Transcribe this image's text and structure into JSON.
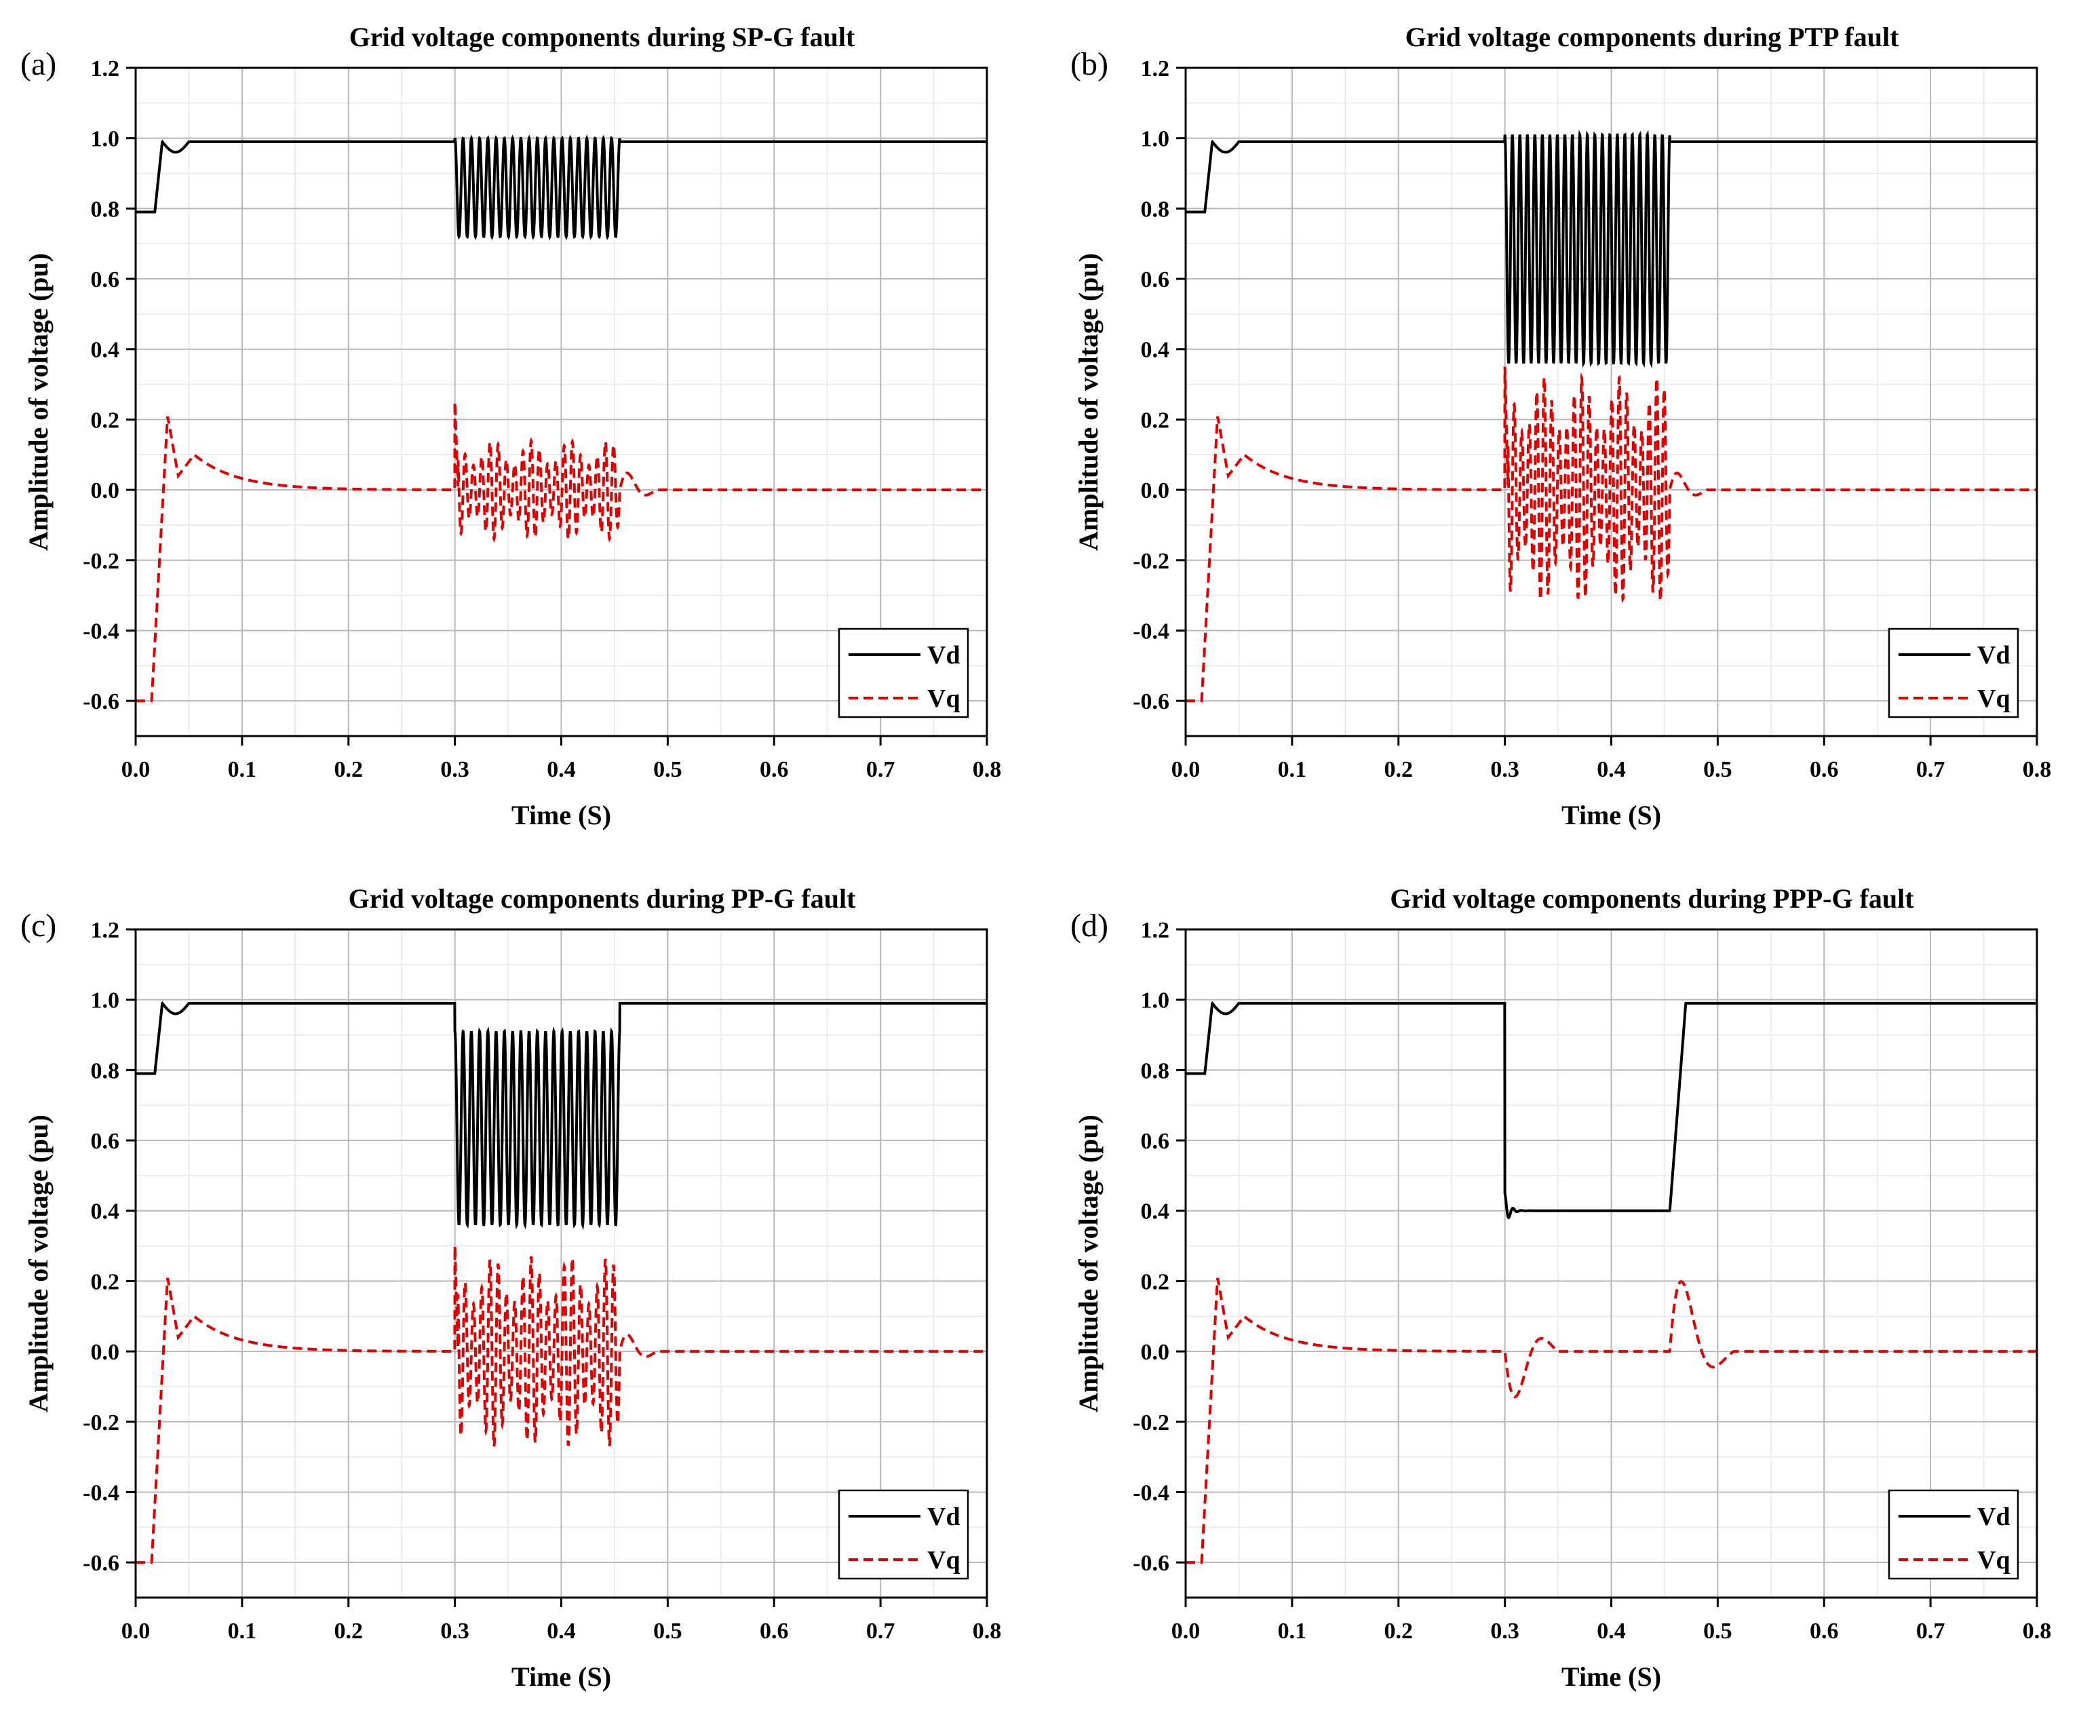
{
  "chart_data": [
    {
      "type": "line",
      "panel_label": "(a)",
      "title": "Grid voltage components during SP-G fault",
      "xlabel": "Time (S)",
      "ylabel": "Amplitude of voltage (pu)",
      "xlim": [
        0.0,
        0.8
      ],
      "ylim": [
        -0.7,
        1.2
      ],
      "xticks": [
        "0.0",
        "0.1",
        "0.2",
        "0.3",
        "0.4",
        "0.5",
        "0.6",
        "0.7",
        "0.8"
      ],
      "yticks": [
        "-0.6",
        "-0.4",
        "-0.2",
        "0.0",
        "0.2",
        "0.4",
        "0.6",
        "0.8",
        "1.0",
        "1.2"
      ],
      "legend": [
        "Vd",
        "Vq"
      ],
      "grid": true,
      "fault": {
        "start": 0.3,
        "end": 0.455,
        "vd_max": 1.0,
        "vd_min": 0.72,
        "vq_max": 0.14,
        "vq_min": -0.14,
        "vq_spike": 0.25,
        "cycles": 20
      },
      "series": [
        {
          "name": "Vd",
          "color": "#000000",
          "style": "solid"
        },
        {
          "name": "Vq",
          "color": "#e00000",
          "style": "dashed"
        }
      ]
    },
    {
      "type": "line",
      "panel_label": "(b)",
      "title": "Grid voltage components during PTP fault",
      "xlabel": "Time (S)",
      "ylabel": "Amplitude of voltage (pu)",
      "xlim": [
        0.0,
        0.8
      ],
      "ylim": [
        -0.7,
        1.2
      ],
      "xticks": [
        "0.0",
        "0.1",
        "0.2",
        "0.3",
        "0.4",
        "0.5",
        "0.6",
        "0.7",
        "0.8"
      ],
      "yticks": [
        "-0.6",
        "-0.4",
        "-0.2",
        "0.0",
        "0.2",
        "0.4",
        "0.6",
        "0.8",
        "1.0",
        "1.2"
      ],
      "legend": [
        "Vd",
        "Vq"
      ],
      "grid": true,
      "fault": {
        "start": 0.3,
        "end": 0.455,
        "vd_max": 1.01,
        "vd_min": 0.36,
        "vq_max": 0.32,
        "vq_min": -0.32,
        "vq_spike": 0.35,
        "cycles": 22
      },
      "series": [
        {
          "name": "Vd",
          "color": "#000000",
          "style": "solid"
        },
        {
          "name": "Vq",
          "color": "#e00000",
          "style": "dashed"
        }
      ]
    },
    {
      "type": "line",
      "panel_label": "(c)",
      "title": "Grid voltage components during PP-G fault",
      "xlabel": "Time (S)",
      "ylabel": "Amplitude of voltage (pu)",
      "xlim": [
        0.0,
        0.8
      ],
      "ylim": [
        -0.7,
        1.2
      ],
      "xticks": [
        "0.0",
        "0.1",
        "0.2",
        "0.3",
        "0.4",
        "0.5",
        "0.6",
        "0.7",
        "0.8"
      ],
      "yticks": [
        "-0.6",
        "-0.4",
        "-0.2",
        "0.0",
        "0.2",
        "0.4",
        "0.6",
        "0.8",
        "1.0",
        "1.2"
      ],
      "legend": [
        "Vd",
        "Vq"
      ],
      "grid": true,
      "fault": {
        "start": 0.3,
        "end": 0.455,
        "vd_max": 0.91,
        "vd_min": 0.36,
        "vq_max": 0.27,
        "vq_min": -0.26,
        "vq_spike": 0.3,
        "cycles": 20
      },
      "series": [
        {
          "name": "Vd",
          "color": "#000000",
          "style": "solid"
        },
        {
          "name": "Vq",
          "color": "#e00000",
          "style": "dashed"
        }
      ]
    },
    {
      "type": "line",
      "panel_label": "(d)",
      "title": "Grid voltage components during PPP-G fault",
      "xlabel": "Time (S)",
      "ylabel": "Amplitude of voltage (pu)",
      "xlim": [
        0.0,
        0.8
      ],
      "ylim": [
        -0.7,
        1.2
      ],
      "xticks": [
        "0.0",
        "0.1",
        "0.2",
        "0.3",
        "0.4",
        "0.5",
        "0.6",
        "0.7",
        "0.8"
      ],
      "yticks": [
        "-0.6",
        "-0.4",
        "-0.2",
        "0.0",
        "0.2",
        "0.4",
        "0.6",
        "0.8",
        "1.0",
        "1.2"
      ],
      "legend": [
        "Vd",
        "Vq"
      ],
      "grid": true,
      "fault": {
        "start": 0.3,
        "end": 0.455,
        "vd_level": 0.4,
        "vq_dip": -0.14,
        "vq_peak_recovery": 0.29
      },
      "series": [
        {
          "name": "Vd",
          "color": "#000000",
          "style": "solid"
        },
        {
          "name": "Vq",
          "color": "#e00000",
          "style": "dashed"
        }
      ]
    }
  ]
}
